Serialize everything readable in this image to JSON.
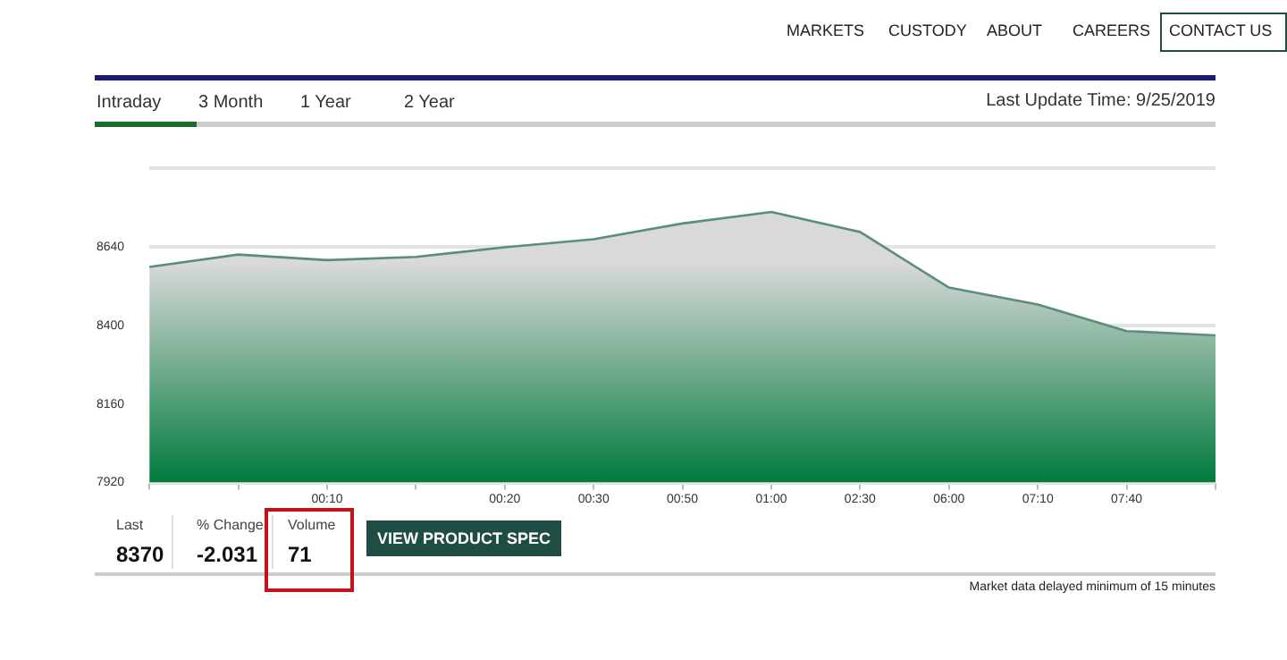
{
  "chart_data": {
    "type": "area",
    "categories": [
      null,
      null,
      "00:10",
      null,
      "00:20",
      "00:30",
      "00:50",
      "01:00",
      "02:30",
      "06:00",
      "07:10",
      "07:40",
      null
    ],
    "series": [
      {
        "color": "#5b8c7c",
        "values": [
          8579,
          8617,
          8600,
          8610,
          8639,
          8664,
          8712,
          8747,
          8686,
          8516,
          8464,
          8383,
          8370
        ]
      }
    ],
    "ylim": [
      7920,
      8880
    ],
    "yticks": [
      7920,
      8160,
      8400,
      8640,
      {
        "value": 8880,
        "label": null
      }
    ],
    "grid": "y",
    "legend": false,
    "marker": "none",
    "annotations": [
      "MARKETS",
      "CUSTODY",
      "ABOUT",
      "CAREERS",
      "CONTACT US",
      "Intraday",
      "3 Month",
      "1 Year",
      "2 Year",
      "Last Update Time: 9/25/2019",
      "Last",
      "8370",
      "% Change",
      "-2.031",
      "Volume",
      "71",
      "VIEW PRODUCT SPEC",
      "Market data delayed minimum of 15 minutes"
    ]
  }
}
